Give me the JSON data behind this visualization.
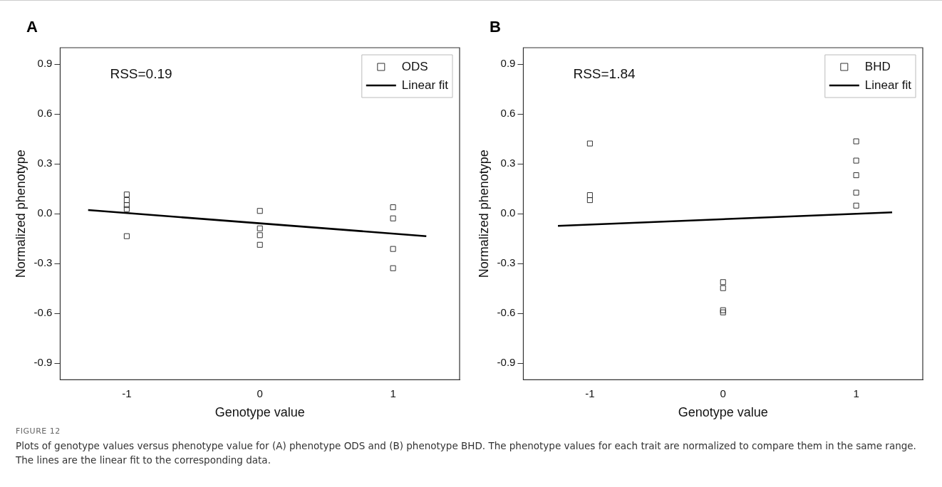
{
  "chart_data": [
    {
      "type": "scatter",
      "title": "A",
      "xlabel": "Genotype value",
      "ylabel": "Normalized phenotype",
      "annotations": [
        "RSS=0.19",
        "FIGURE 12",
        "Plots of genotype values versus phenotype value for (A) phenotype ODS and (B) phenotype BHD. The phenotype values for each trait are normalized to compare them in the same range. The lines are the linear fit to the corresponding data."
      ],
      "series": [
        {
          "name": "ODS",
          "marker": "square",
          "color": "#333333",
          "x": [
            -1,
            -1,
            -1,
            -1,
            -1,
            0,
            0,
            0,
            0,
            1,
            1,
            1,
            1
          ],
          "values": [
            0.116,
            0.082,
            0.052,
            0.028,
            -0.135,
            0.017,
            -0.088,
            -0.129,
            -0.187,
            0.039,
            -0.028,
            -0.212,
            -0.328
          ]
        },
        {
          "name": "Linear fit",
          "type": "line",
          "marker": "none",
          "color": "#000000",
          "x": [
            -1.29,
            1.25
          ],
          "values": [
            0.022,
            -0.135
          ]
        }
      ],
      "xlim": [
        -1.5,
        1.5
      ],
      "xticks": [
        -1,
        0,
        1
      ],
      "ylim": [
        -1,
        1
      ],
      "yticks": [
        -0.9,
        -0.6,
        -0.3,
        {
          "value": 0,
          "label": "0.0"
        },
        0.3,
        0.6,
        0.9
      ],
      "grid": false,
      "legend": "top right"
    },
    {
      "type": "scatter",
      "title": "B",
      "xlabel": "Genotype value",
      "ylabel": "Normalized phenotype",
      "annotations": [
        "RSS=1.84"
      ],
      "series": [
        {
          "name": "BHD",
          "marker": "square",
          "color": "#333333",
          "x": [
            -1,
            -1,
            -1,
            0,
            0,
            0,
            0,
            1,
            1,
            1,
            1,
            1
          ],
          "values": [
            0.423,
            0.112,
            0.082,
            -0.412,
            -0.448,
            -0.581,
            -0.594,
            0.436,
            0.32,
            0.232,
            0.127,
            0.049
          ]
        },
        {
          "name": "Linear fit",
          "type": "line",
          "marker": "none",
          "color": "#000000",
          "x": [
            -1.24,
            1.27
          ],
          "values": [
            -0.073,
            0.008
          ]
        }
      ],
      "xlim": [
        -1.5,
        1.5
      ],
      "xticks": [
        -1,
        0,
        1
      ],
      "ylim": [
        -1,
        1
      ],
      "yticks": [
        -0.9,
        -0.6,
        -0.3,
        {
          "value": 0,
          "label": "0.0"
        },
        0.3,
        0.6,
        0.9
      ],
      "grid": false,
      "legend": "top right"
    }
  ]
}
